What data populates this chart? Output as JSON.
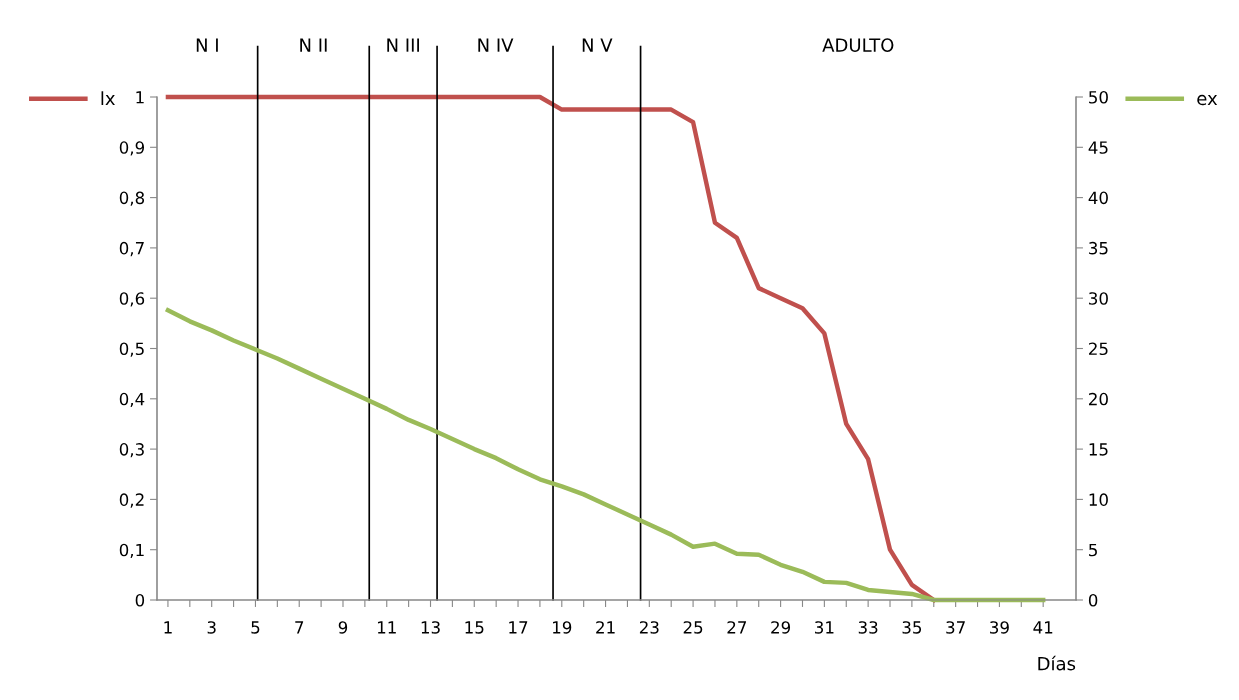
{
  "chart_data": {
    "type": "line",
    "xlabel": "Días",
    "x": [
      1,
      2,
      3,
      4,
      5,
      6,
      7,
      8,
      9,
      10,
      11,
      12,
      13,
      14,
      15,
      16,
      17,
      18,
      19,
      20,
      21,
      22,
      23,
      24,
      25,
      26,
      27,
      28,
      29,
      30,
      31,
      32,
      33,
      34,
      35,
      36,
      37,
      38,
      39,
      40,
      41
    ],
    "xlim": [
      0.5,
      42.5
    ],
    "xticks": [
      1,
      {
        "value": 2,
        "label": null
      },
      3,
      {
        "value": 4,
        "label": null
      },
      5,
      {
        "value": 6,
        "label": null
      },
      7,
      {
        "value": 8,
        "label": null
      },
      9,
      {
        "value": 10,
        "label": null
      },
      11,
      {
        "value": 12,
        "label": null
      },
      13,
      {
        "value": 14,
        "label": null
      },
      15,
      {
        "value": 16,
        "label": null
      },
      17,
      {
        "value": 18,
        "label": null
      },
      19,
      {
        "value": 20,
        "label": null
      },
      21,
      {
        "value": 22,
        "label": null
      },
      23,
      {
        "value": 24,
        "label": null
      },
      25,
      {
        "value": 26,
        "label": null
      },
      27,
      {
        "value": 28,
        "label": null
      },
      29,
      {
        "value": 30,
        "label": null
      },
      31,
      {
        "value": 32,
        "label": null
      },
      33,
      {
        "value": 34,
        "label": null
      },
      35,
      {
        "value": 36,
        "label": null
      },
      37,
      {
        "value": 38,
        "label": null
      },
      39,
      {
        "value": 40,
        "label": null
      },
      41
    ],
    "ylim": [
      0,
      1
    ],
    "yticks": [
      0,
      {
        "value": 0.1,
        "label": "0,1"
      },
      {
        "value": 0.2,
        "label": "0,2"
      },
      {
        "value": 0.3,
        "label": "0,3"
      },
      {
        "value": 0.4,
        "label": "0,4"
      },
      {
        "value": 0.5,
        "label": "0,5"
      },
      {
        "value": 0.6,
        "label": "0,6"
      },
      {
        "value": 0.7,
        "label": "0,7"
      },
      {
        "value": 0.8,
        "label": "0,8"
      },
      {
        "value": 0.9,
        "label": "0,9"
      },
      1
    ],
    "y2lim": [
      0,
      50
    ],
    "y2ticks": [
      0,
      5,
      10,
      15,
      20,
      25,
      30,
      35,
      40,
      45,
      50
    ],
    "series": [
      {
        "name": "lx",
        "color": "#c0504d",
        "values": [
          1,
          1,
          1,
          1,
          1,
          1,
          1,
          1,
          1,
          1,
          1,
          1,
          1,
          1,
          1,
          1,
          1,
          1,
          0.975,
          0.975,
          0.975,
          0.975,
          0.975,
          0.975,
          0.95,
          0.75,
          0.72,
          0.62,
          0.6,
          0.58,
          0.53,
          0.35,
          0.28,
          0.1,
          0.03,
          0,
          null,
          null,
          null,
          null,
          null
        ]
      },
      {
        "name": "ex",
        "color": "#9bbb59",
        "axis": "y2",
        "values": [
          28.8,
          27.7,
          26.8,
          25.8,
          24.9,
          24.0,
          23.0,
          22.0,
          21.0,
          20.0,
          19.0,
          17.9,
          17.0,
          16.0,
          15.0,
          14.1,
          13.0,
          12.0,
          11.3,
          10.5,
          9.5,
          8.5,
          7.5,
          6.5,
          5.3,
          5.6,
          4.6,
          4.5,
          3.5,
          2.8,
          1.8,
          1.7,
          1.0,
          0.8,
          0.6,
          0,
          0,
          0,
          0,
          0,
          0
        ]
      }
    ],
    "ref_lines": [
      {
        "axis": "x",
        "value": 5.1,
        "color": "#000000"
      },
      {
        "axis": "x",
        "value": 10.2,
        "color": "#000000"
      },
      {
        "axis": "x",
        "value": 13.3,
        "color": "#000000"
      },
      {
        "axis": "x",
        "value": 18.6,
        "color": "#000000"
      },
      {
        "axis": "x",
        "value": 22.6,
        "color": "#000000"
      }
    ],
    "annotations": [
      "N I",
      "N II",
      "N III",
      "N IV",
      "N V",
      "ADULTO"
    ],
    "grid": false,
    "legend": "top",
    "marker": "none",
    "line_style": "solid"
  }
}
